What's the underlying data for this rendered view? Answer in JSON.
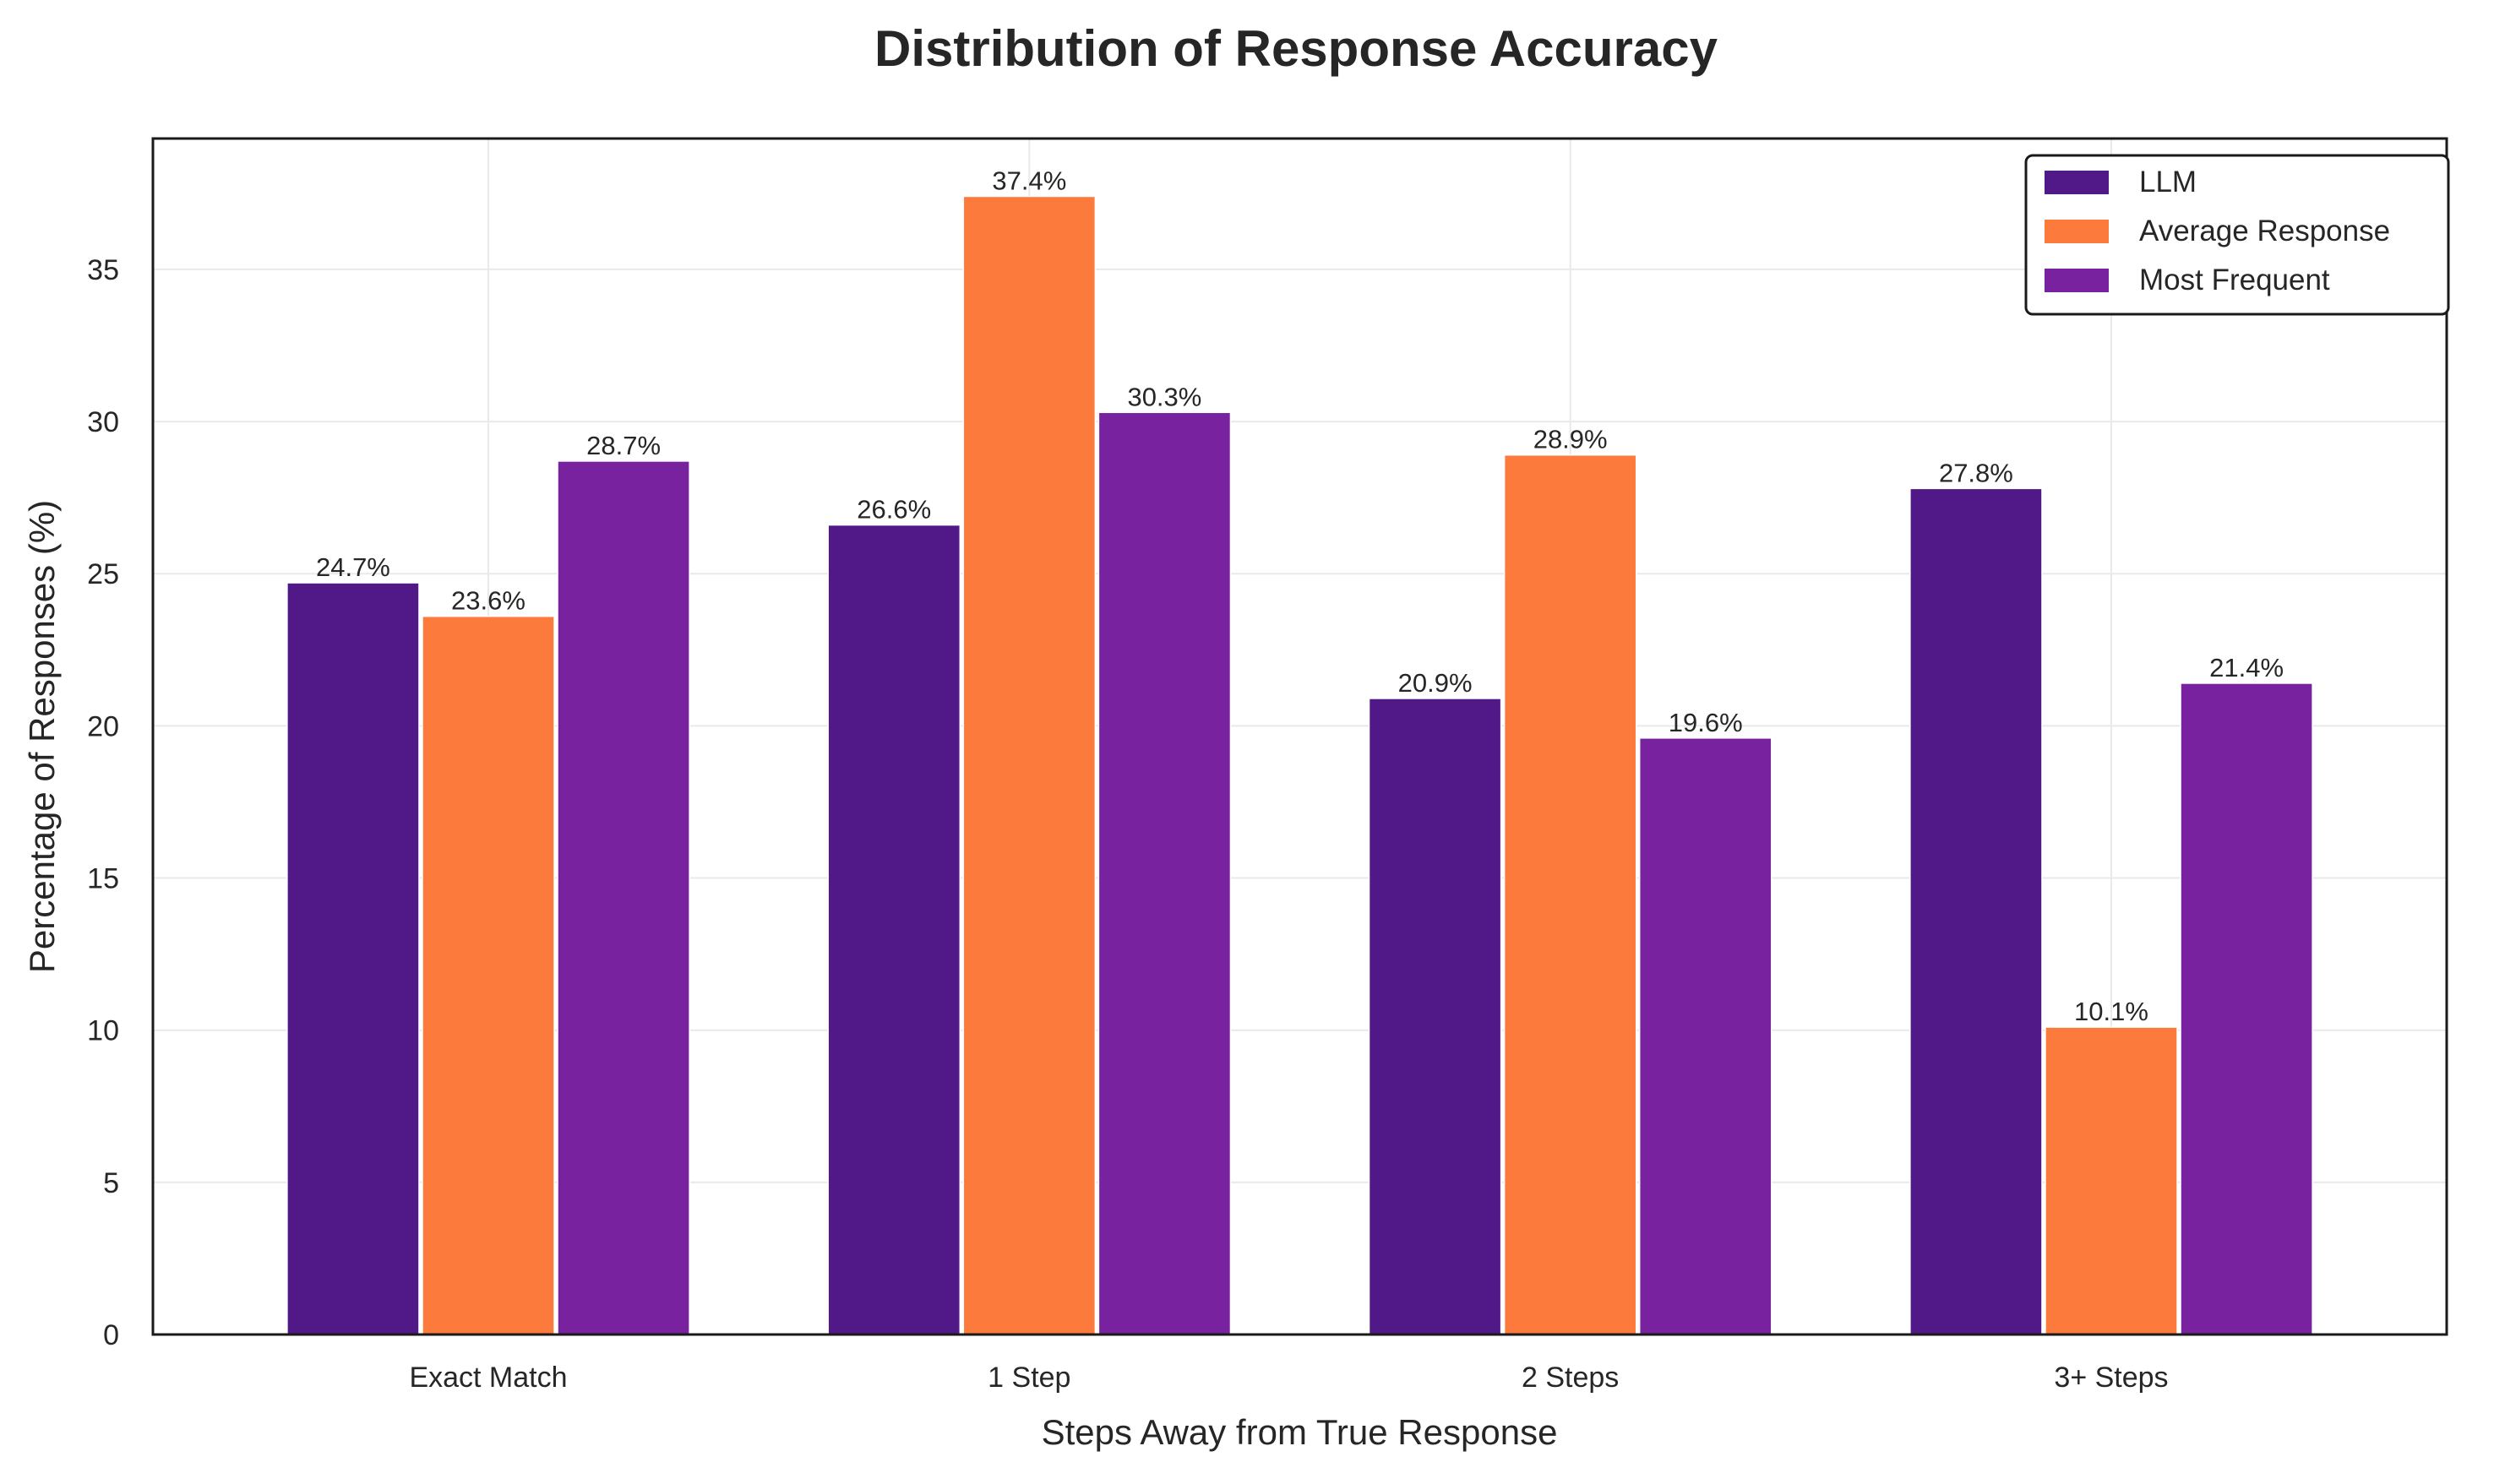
{
  "chart_data": {
    "type": "bar",
    "title": "Distribution of Response Accuracy",
    "xlabel": "Steps Away from True Response",
    "ylabel": "Percentage of Responses (%)",
    "categories": [
      "Exact Match",
      "1 Step",
      "2 Steps",
      "3+ Steps"
    ],
    "series": [
      {
        "name": "LLM",
        "color": "#511887",
        "values": [
          24.7,
          26.6,
          20.9,
          27.8
        ],
        "labels": [
          "24.7%",
          "26.6%",
          "20.9%",
          "27.8%"
        ]
      },
      {
        "name": "Average Response",
        "color": "#fd7a3d",
        "values": [
          23.6,
          37.4,
          28.9,
          10.1
        ],
        "labels": [
          "23.6%",
          "37.4%",
          "28.9%",
          "10.1%"
        ]
      },
      {
        "name": "Most Frequent",
        "color": "#78229f",
        "values": [
          28.7,
          30.3,
          19.6,
          21.4
        ],
        "labels": [
          "28.7%",
          "30.3%",
          "19.6%",
          "21.4%"
        ]
      }
    ],
    "ylim": [
      0,
      39.3
    ],
    "yticks": [
      0,
      5,
      10,
      15,
      20,
      25,
      30,
      35
    ],
    "ytick_labels": [
      "0",
      "5",
      "10",
      "15",
      "20",
      "25",
      "30",
      "35"
    ],
    "grid": true,
    "legend_position": "top-right"
  }
}
